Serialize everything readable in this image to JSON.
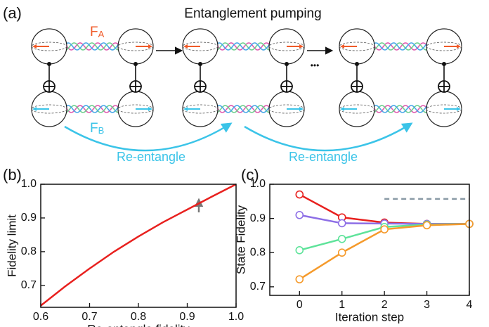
{
  "diagram": {
    "label": "(a)",
    "title": "Entanglement pumping",
    "force_a": "F",
    "force_a_sub": "A",
    "force_b": "F",
    "force_b_sub": "B",
    "ellipsis": "•••",
    "arrow_labels": [
      "Re-entangle",
      "Re-entangle"
    ]
  },
  "chart_data": [
    {
      "type": "line",
      "label": "(b)",
      "xlabel": "Re-entangle fidelity",
      "ylabel": "Fidelity limit",
      "x": [
        0.6,
        0.65,
        0.7,
        0.75,
        0.8,
        0.85,
        0.9,
        0.95,
        1.0
      ],
      "values": [
        0.64,
        0.697,
        0.75,
        0.8,
        0.845,
        0.887,
        0.925,
        0.963,
        1.0
      ],
      "color": "#e8201e",
      "xlim": [
        0.6,
        1.0
      ],
      "ylim": [
        0.635,
        1.0
      ],
      "xticks": [
        0.6,
        0.7,
        0.8,
        0.9,
        {
          "value": 1,
          "label": "1.0"
        }
      ],
      "yticks": [
        0.7,
        0.8,
        0.9,
        {
          "value": 1,
          "label": "1.0"
        }
      ]
    },
    {
      "type": "line",
      "label": "(c)",
      "xlabel": "Iteration step",
      "ylabel": "State Fidelity",
      "markers": true,
      "x": [
        0,
        1,
        2,
        3,
        4
      ],
      "series": [
        {
          "color": "#e8201e",
          "values": [
            0.97,
            0.903,
            0.888,
            0.884,
            0.884
          ]
        },
        {
          "color": "#8d6ee6",
          "values": [
            0.91,
            0.886,
            0.885,
            0.884,
            0.884
          ]
        },
        {
          "color": "#5ee39a",
          "values": [
            0.807,
            0.84,
            0.875,
            0.882,
            0.884
          ]
        },
        {
          "color": "#f59a2b",
          "values": [
            0.722,
            0.8,
            0.868,
            0.88,
            0.884
          ]
        }
      ],
      "reference_line": 0.957,
      "reference_x": [
        2,
        4
      ],
      "xlim": [
        -0.7,
        4
      ],
      "ylim": [
        0.675,
        1.0
      ],
      "xticks": [
        0,
        1,
        2,
        3,
        4
      ],
      "yticks": [
        0.7,
        0.8,
        0.9,
        {
          "value": 1,
          "label": "1.0"
        }
      ]
    }
  ]
}
